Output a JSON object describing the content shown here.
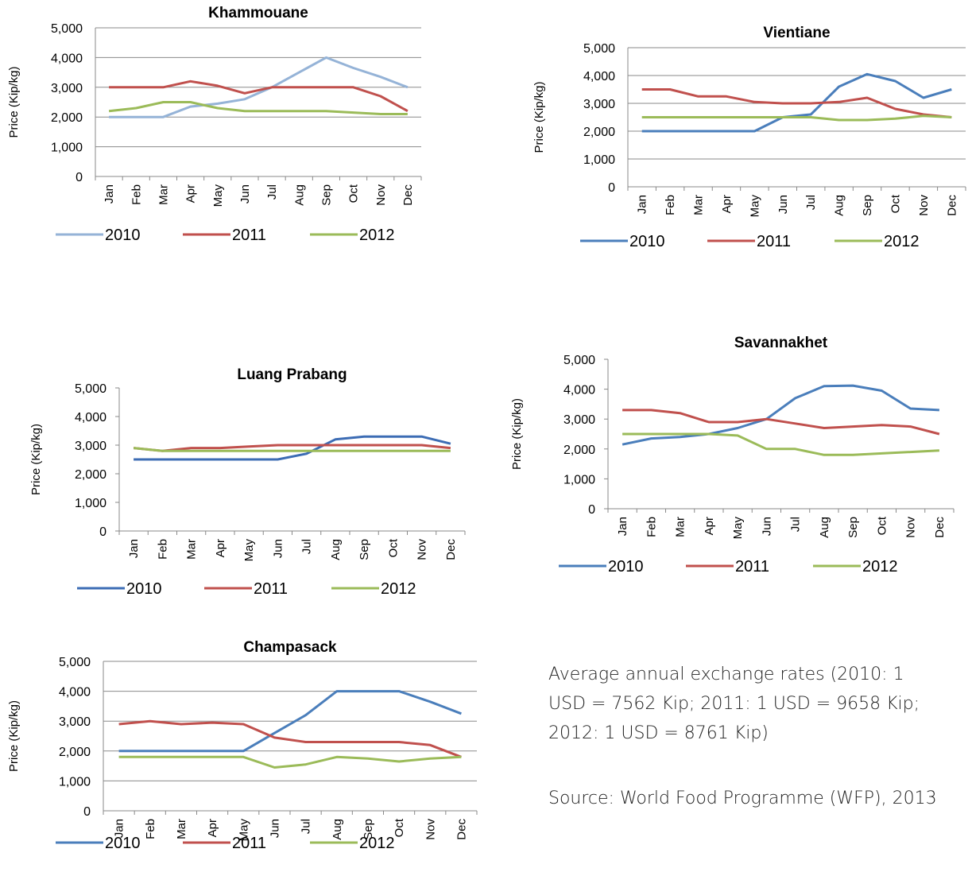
{
  "chart_data": [
    {
      "type": "line",
      "title": "Khammouane",
      "y_label": "Price (Kip/kg)",
      "categories": [
        "Jan",
        "Feb",
        "Mar",
        "Apr",
        "May",
        "Jun",
        "Jul",
        "Aug",
        "Sep",
        "Oct",
        "Nov",
        "Dec"
      ],
      "ylim": [
        0,
        5000
      ],
      "yticks": [
        0,
        {
          "value": 1000,
          "label": "1,000"
        },
        {
          "value": 2000,
          "label": "2,000"
        },
        {
          "value": 3000,
          "label": "3,000"
        },
        {
          "value": 4000,
          "label": "4,000"
        },
        {
          "value": 5000,
          "label": "5,000"
        }
      ],
      "grid": true,
      "legend": "bottom",
      "series": [
        {
          "name": "2010",
          "color": "#95b3d7",
          "values": [
            2000,
            2000,
            2000,
            2350,
            2450,
            2600,
            3000,
            3500,
            4000,
            3650,
            3350,
            3000
          ]
        },
        {
          "name": "2011",
          "color": "#c0504d",
          "values": [
            3000,
            3000,
            3000,
            3200,
            3050,
            2800,
            3000,
            3000,
            3000,
            3000,
            2700,
            2200
          ]
        },
        {
          "name": "2012",
          "color": "#9bbb59",
          "values": [
            2200,
            2300,
            2500,
            2500,
            2300,
            2200,
            2200,
            2200,
            2200,
            2150,
            2100,
            2100
          ]
        }
      ]
    },
    {
      "type": "line",
      "title": "Vientiane",
      "y_label": "Price (Kip/kg)",
      "categories": [
        "Jan",
        "Feb",
        "Mar",
        "Apr",
        "May",
        "Jun",
        "Jul",
        "Aug",
        "Sep",
        "Oct",
        "Nov",
        "Dec"
      ],
      "ylim": [
        0,
        5000
      ],
      "yticks": [
        0,
        {
          "value": 1000,
          "label": "1,000"
        },
        {
          "value": 2000,
          "label": "2,000"
        },
        {
          "value": 3000,
          "label": "3,000"
        },
        {
          "value": 4000,
          "label": "4,000"
        },
        {
          "value": 5000,
          "label": "5,000"
        }
      ],
      "grid": true,
      "legend": "bottom",
      "series": [
        {
          "name": "2010",
          "color": "#4a7ebb",
          "values": [
            2000,
            2000,
            2000,
            2000,
            2000,
            2500,
            2600,
            3600,
            4050,
            3800,
            3200,
            3500
          ]
        },
        {
          "name": "2011",
          "color": "#c0504d",
          "values": [
            3500,
            3500,
            3250,
            3250,
            3050,
            3000,
            3000,
            3050,
            3200,
            2800,
            2600,
            2500
          ]
        },
        {
          "name": "2012",
          "color": "#9bbb59",
          "values": [
            2500,
            2500,
            2500,
            2500,
            2500,
            2500,
            2500,
            2400,
            2400,
            2450,
            2550,
            2500
          ]
        }
      ]
    },
    {
      "type": "line",
      "title": "Luang Prabang",
      "y_label": "Price (Kip/kg)",
      "categories": [
        "Jan",
        "Feb",
        "Mar",
        "Apr",
        "May",
        "Jun",
        "Jul",
        "Aug",
        "Sep",
        "Oct",
        "Nov",
        "Dec"
      ],
      "ylim": [
        0,
        5000
      ],
      "yticks": [
        0,
        {
          "value": 1000,
          "label": "1,000"
        },
        {
          "value": 2000,
          "label": "2,000"
        },
        {
          "value": 3000,
          "label": "3,000"
        },
        {
          "value": 4000,
          "label": "4,000"
        },
        {
          "value": 5000,
          "label": "5,000"
        }
      ],
      "grid": false,
      "legend": "bottom",
      "series": [
        {
          "name": "2010",
          "color": "#3c6cb4",
          "values": [
            2500,
            2500,
            2500,
            2500,
            2500,
            2500,
            2700,
            3200,
            3300,
            3300,
            3300,
            3050
          ]
        },
        {
          "name": "2011",
          "color": "#c0504d",
          "values": [
            2900,
            2800,
            2900,
            2900,
            2950,
            3000,
            3000,
            3000,
            3000,
            3000,
            3000,
            2900
          ]
        },
        {
          "name": "2012",
          "color": "#9bbb59",
          "values": [
            2900,
            2800,
            2800,
            2800,
            2800,
            2800,
            2800,
            2800,
            2800,
            2800,
            2800,
            2800
          ]
        }
      ]
    },
    {
      "type": "line",
      "title": "Savannakhet",
      "y_label": "Price (Kip/kg)",
      "categories": [
        "Jan",
        "Feb",
        "Mar",
        "Apr",
        "May",
        "Jun",
        "Jul",
        "Aug",
        "Sep",
        "Oct",
        "Nov",
        "Dec"
      ],
      "ylim": [
        0,
        5000
      ],
      "yticks": [
        0,
        {
          "value": 1000,
          "label": "1,000"
        },
        {
          "value": 2000,
          "label": "2,000"
        },
        {
          "value": 3000,
          "label": "3,000"
        },
        {
          "value": 4000,
          "label": "4,000"
        },
        {
          "value": 5000,
          "label": "5,000"
        }
      ],
      "grid": false,
      "legend": "bottom",
      "series": [
        {
          "name": "2010",
          "color": "#4a7ebb",
          "values": [
            2150,
            2350,
            2400,
            2500,
            2700,
            3000,
            3700,
            4100,
            4120,
            3950,
            3350,
            3300
          ]
        },
        {
          "name": "2011",
          "color": "#c0504d",
          "values": [
            3300,
            3300,
            3200,
            2900,
            2900,
            3000,
            2850,
            2700,
            2750,
            2800,
            2750,
            2500
          ]
        },
        {
          "name": "2012",
          "color": "#9bbb59",
          "values": [
            2500,
            2500,
            2500,
            2500,
            2450,
            2000,
            2000,
            1800,
            1800,
            1850,
            1900,
            1950
          ]
        }
      ]
    },
    {
      "type": "line",
      "title": "Champasack",
      "y_label": "Price (Kip/kg)",
      "categories": [
        "Jan",
        "Feb",
        "Mar",
        "Apr",
        "May",
        "Jun",
        "Jul",
        "Aug",
        "Sep",
        "Oct",
        "Nov",
        "Dec"
      ],
      "ylim": [
        0,
        5000
      ],
      "yticks": [
        0,
        {
          "value": 1000,
          "label": "1,000"
        },
        {
          "value": 2000,
          "label": "2,000"
        },
        {
          "value": 3000,
          "label": "3,000"
        },
        {
          "value": 4000,
          "label": "4,000"
        },
        {
          "value": 5000,
          "label": "5,000"
        }
      ],
      "grid": true,
      "legend": "bottom",
      "series": [
        {
          "name": "2010",
          "color": "#4a7ebb",
          "values": [
            2000,
            2000,
            2000,
            2000,
            2000,
            2600,
            3200,
            4000,
            4000,
            4000,
            3650,
            3250
          ]
        },
        {
          "name": "2011",
          "color": "#c0504d",
          "values": [
            2900,
            3000,
            2900,
            2950,
            2900,
            2450,
            2300,
            2300,
            2300,
            2300,
            2200,
            1800
          ]
        },
        {
          "name": "2012",
          "color": "#9bbb59",
          "values": [
            1800,
            1800,
            1800,
            1800,
            1800,
            1450,
            1550,
            1800,
            1750,
            1650,
            1750,
            1800
          ]
        }
      ]
    }
  ],
  "note": {
    "exchange_rates": "Average annual exchange rates (2010: 1 USD = 7562 Kip; 2011: 1 USD = 9658 Kip; 2012: 1 USD = 8761 Kip)",
    "source": "Source: World Food Programme (WFP), 2013"
  }
}
